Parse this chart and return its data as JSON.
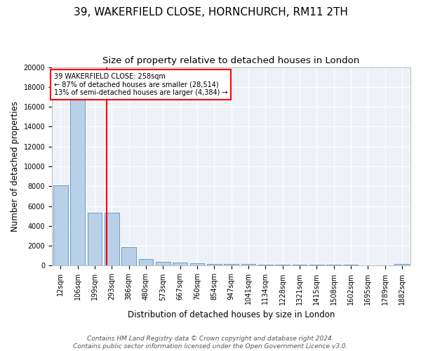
{
  "title": "39, WAKERFIELD CLOSE, HORNCHURCH, RM11 2TH",
  "subtitle": "Size of property relative to detached houses in London",
  "xlabel": "Distribution of detached houses by size in London",
  "ylabel": "Number of detached properties",
  "categories": [
    "12sqm",
    "106sqm",
    "199sqm",
    "293sqm",
    "386sqm",
    "480sqm",
    "573sqm",
    "667sqm",
    "760sqm",
    "854sqm",
    "947sqm",
    "1041sqm",
    "1134sqm",
    "1228sqm",
    "1321sqm",
    "1415sqm",
    "1508sqm",
    "1602sqm",
    "1695sqm",
    "1789sqm",
    "1882sqm"
  ],
  "values": [
    8100,
    16700,
    5300,
    5300,
    1850,
    700,
    350,
    280,
    220,
    180,
    160,
    150,
    130,
    110,
    100,
    90,
    80,
    70,
    60,
    50,
    160
  ],
  "bar_color": "#b8d0e8",
  "bar_edge_color": "#6aa0c8",
  "vline_x": 2.69,
  "vline_color": "red",
  "annotation_text": "39 WAKERFIELD CLOSE: 258sqm\n← 87% of detached houses are smaller (28,514)\n13% of semi-detached houses are larger (4,384) →",
  "annotation_box_color": "white",
  "annotation_box_edge_color": "red",
  "footer_text": "Contains HM Land Registry data © Crown copyright and database right 2024.\nContains public sector information licensed under the Open Government Licence v3.0.",
  "ylim": [
    0,
    20000
  ],
  "title_fontsize": 11,
  "subtitle_fontsize": 9.5,
  "axis_label_fontsize": 8.5,
  "tick_fontsize": 7,
  "footer_fontsize": 6.5,
  "background_color": "#eef2f8"
}
